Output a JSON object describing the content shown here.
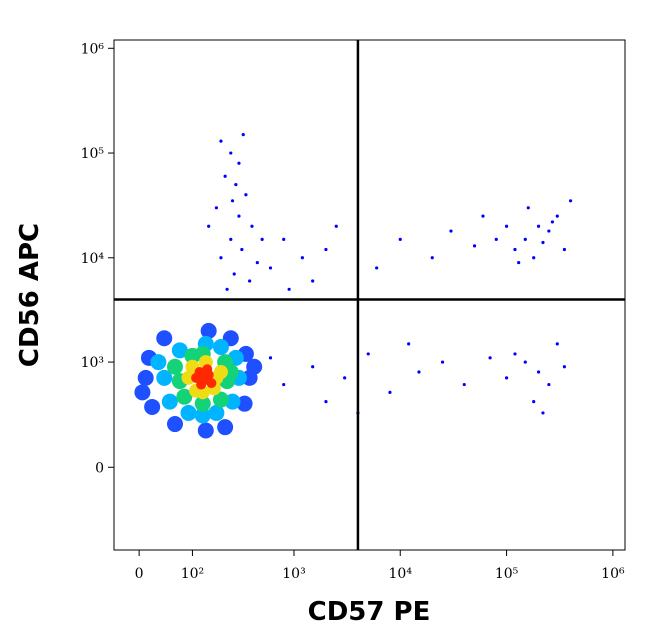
{
  "chart_data": {
    "type": "scatter",
    "x_label": "CD57 PE",
    "y_label": "CD56 APC",
    "scale": "biexponential",
    "xlim": [
      -40,
      1300000
    ],
    "ylim": [
      -600,
      1200000
    ],
    "xticks": [
      0,
      {
        "value": 100,
        "label": "10²"
      },
      {
        "value": 1000,
        "label": "10³"
      },
      {
        "value": 10000,
        "label": "10⁴"
      },
      {
        "value": 100000,
        "label": "10⁵"
      },
      {
        "value": 1000000,
        "label": "10⁶"
      }
    ],
    "yticks": [
      0,
      {
        "value": 1000,
        "label": "10³"
      },
      {
        "value": 10000,
        "label": "10⁴"
      },
      {
        "value": 100000,
        "label": "10⁵"
      },
      {
        "value": 1000000,
        "label": "10⁶"
      }
    ],
    "quadrant": {
      "x": 4000,
      "y": 4000,
      "color": "#000000"
    },
    "series": [
      {
        "color": "#0000ff",
        "size": 1.6,
        "x": [
          200,
          250,
          300,
          220,
          280,
          350,
          180,
          300,
          400,
          250,
          320,
          200,
          450,
          270,
          380,
          230,
          500,
          150,
          330,
          260,
          800,
          1200,
          600,
          2000,
          1500,
          900,
          2500,
          150000,
          200000,
          120000,
          250000,
          180000,
          300000,
          100000,
          220000,
          160000,
          80000,
          350000,
          130000,
          270000,
          50000,
          30000,
          20000,
          10000,
          6000,
          400000,
          60000,
          150000,
          200000,
          120000,
          250000,
          300000,
          180000,
          100000,
          350000,
          70000,
          220000,
          1500,
          3000,
          5000,
          8000,
          15000,
          25000,
          40000,
          2000,
          12000,
          600,
          800,
          4000
        ],
        "y": [
          130000,
          100000,
          80000,
          60000,
          50000,
          40000,
          30000,
          25000,
          20000,
          15000,
          12000,
          10000,
          9000,
          7000,
          6000,
          5000,
          15000,
          20000,
          150000,
          35000,
          15000,
          10000,
          8000,
          12000,
          6000,
          5000,
          20000,
          15000,
          20000,
          12000,
          18000,
          10000,
          25000,
          20000,
          14000,
          30000,
          15000,
          12000,
          9000,
          22000,
          13000,
          18000,
          10000,
          15000,
          8000,
          35000,
          25000,
          1000,
          800,
          1200,
          600,
          1500,
          400,
          700,
          900,
          1100,
          300,
          900,
          700,
          1200,
          500,
          800,
          1000,
          600,
          400,
          1500,
          1100,
          600,
          300
        ]
      },
      {
        "color": "#1e50ff",
        "size": 8,
        "x": [
          10,
          380,
          140,
          150,
          15,
          350,
          20,
          340,
          250,
          40,
          220,
          60,
          420,
          5
        ],
        "y": [
          700,
          700,
          180,
          2000,
          1100,
          1200,
          350,
          380,
          1700,
          1700,
          200,
          220,
          900,
          500
        ]
      },
      {
        "color": "#00b4ff",
        "size": 8,
        "x": [
          40,
          300,
          130,
          140,
          30,
          280,
          50,
          260,
          200,
          70,
          180,
          90
        ],
        "y": [
          700,
          700,
          280,
          1500,
          1000,
          1100,
          400,
          400,
          1400,
          1300,
          300,
          300
        ]
      },
      {
        "color": "#14d278",
        "size": 8,
        "x": [
          70,
          230,
          130,
          130,
          60,
          220,
          80,
          200,
          250,
          100
        ],
        "y": [
          650,
          650,
          380,
          1200,
          900,
          1000,
          450,
          420,
          800,
          1150
        ]
      },
      {
        "color": "#f0dc14",
        "size": 7,
        "x": [
          90,
          180,
          130,
          140,
          100,
          170,
          200,
          110
        ],
        "y": [
          700,
          700,
          500,
          1000,
          900,
          550,
          800,
          520
        ]
      },
      {
        "color": "#ff2800",
        "size": 5,
        "x": [
          110,
          130,
          150,
          120,
          160,
          140,
          125,
          145
        ],
        "y": [
          700,
          650,
          750,
          800,
          620,
          720,
          600,
          850
        ]
      }
    ]
  }
}
